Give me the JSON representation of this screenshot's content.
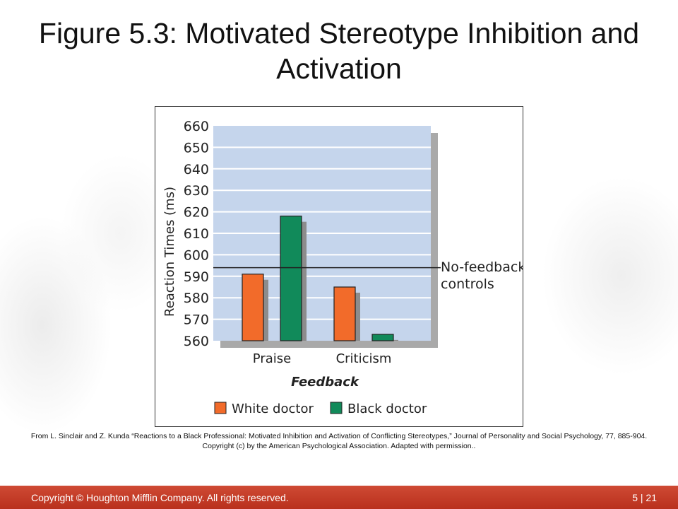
{
  "slide": {
    "title": "Figure 5.3: Motivated Stereotype Inhibition and Activation",
    "credit": "From L. Sinclair and Z. Kunda “Reactions to a Black Professional: Motivated Inhibition and Activation of Conflicting Stereotypes,” Journal of Personality and Social Psychology, 77, 885-904. Copyright (c) by the American Psychological Association. Adapted with permission.."
  },
  "footer": {
    "copyright": "Copyright © Houghton Mifflin Company. All rights reserved.",
    "page": "5 | 21"
  },
  "colors": {
    "plot_bg": "#c5d5ec",
    "white_doctor": "#f26b2a",
    "black_doctor": "#118a5a",
    "footer": "#c13a27"
  },
  "chart_data": {
    "type": "bar",
    "categories": [
      "Praise",
      "Criticism"
    ],
    "series": [
      {
        "name": "White doctor",
        "values": [
          591,
          585
        ]
      },
      {
        "name": "Black doctor",
        "values": [
          618,
          563
        ]
      }
    ],
    "xlabel": "Feedback",
    "ylabel": "Reaction Times (ms)",
    "ylim": [
      560,
      660
    ],
    "yticks": [
      660,
      650,
      640,
      630,
      620,
      610,
      600,
      590,
      580,
      570,
      560
    ],
    "reference_line": {
      "value": 594,
      "label": [
        "No-feedback",
        "controls"
      ]
    },
    "grid": true,
    "legend": "bottom"
  }
}
